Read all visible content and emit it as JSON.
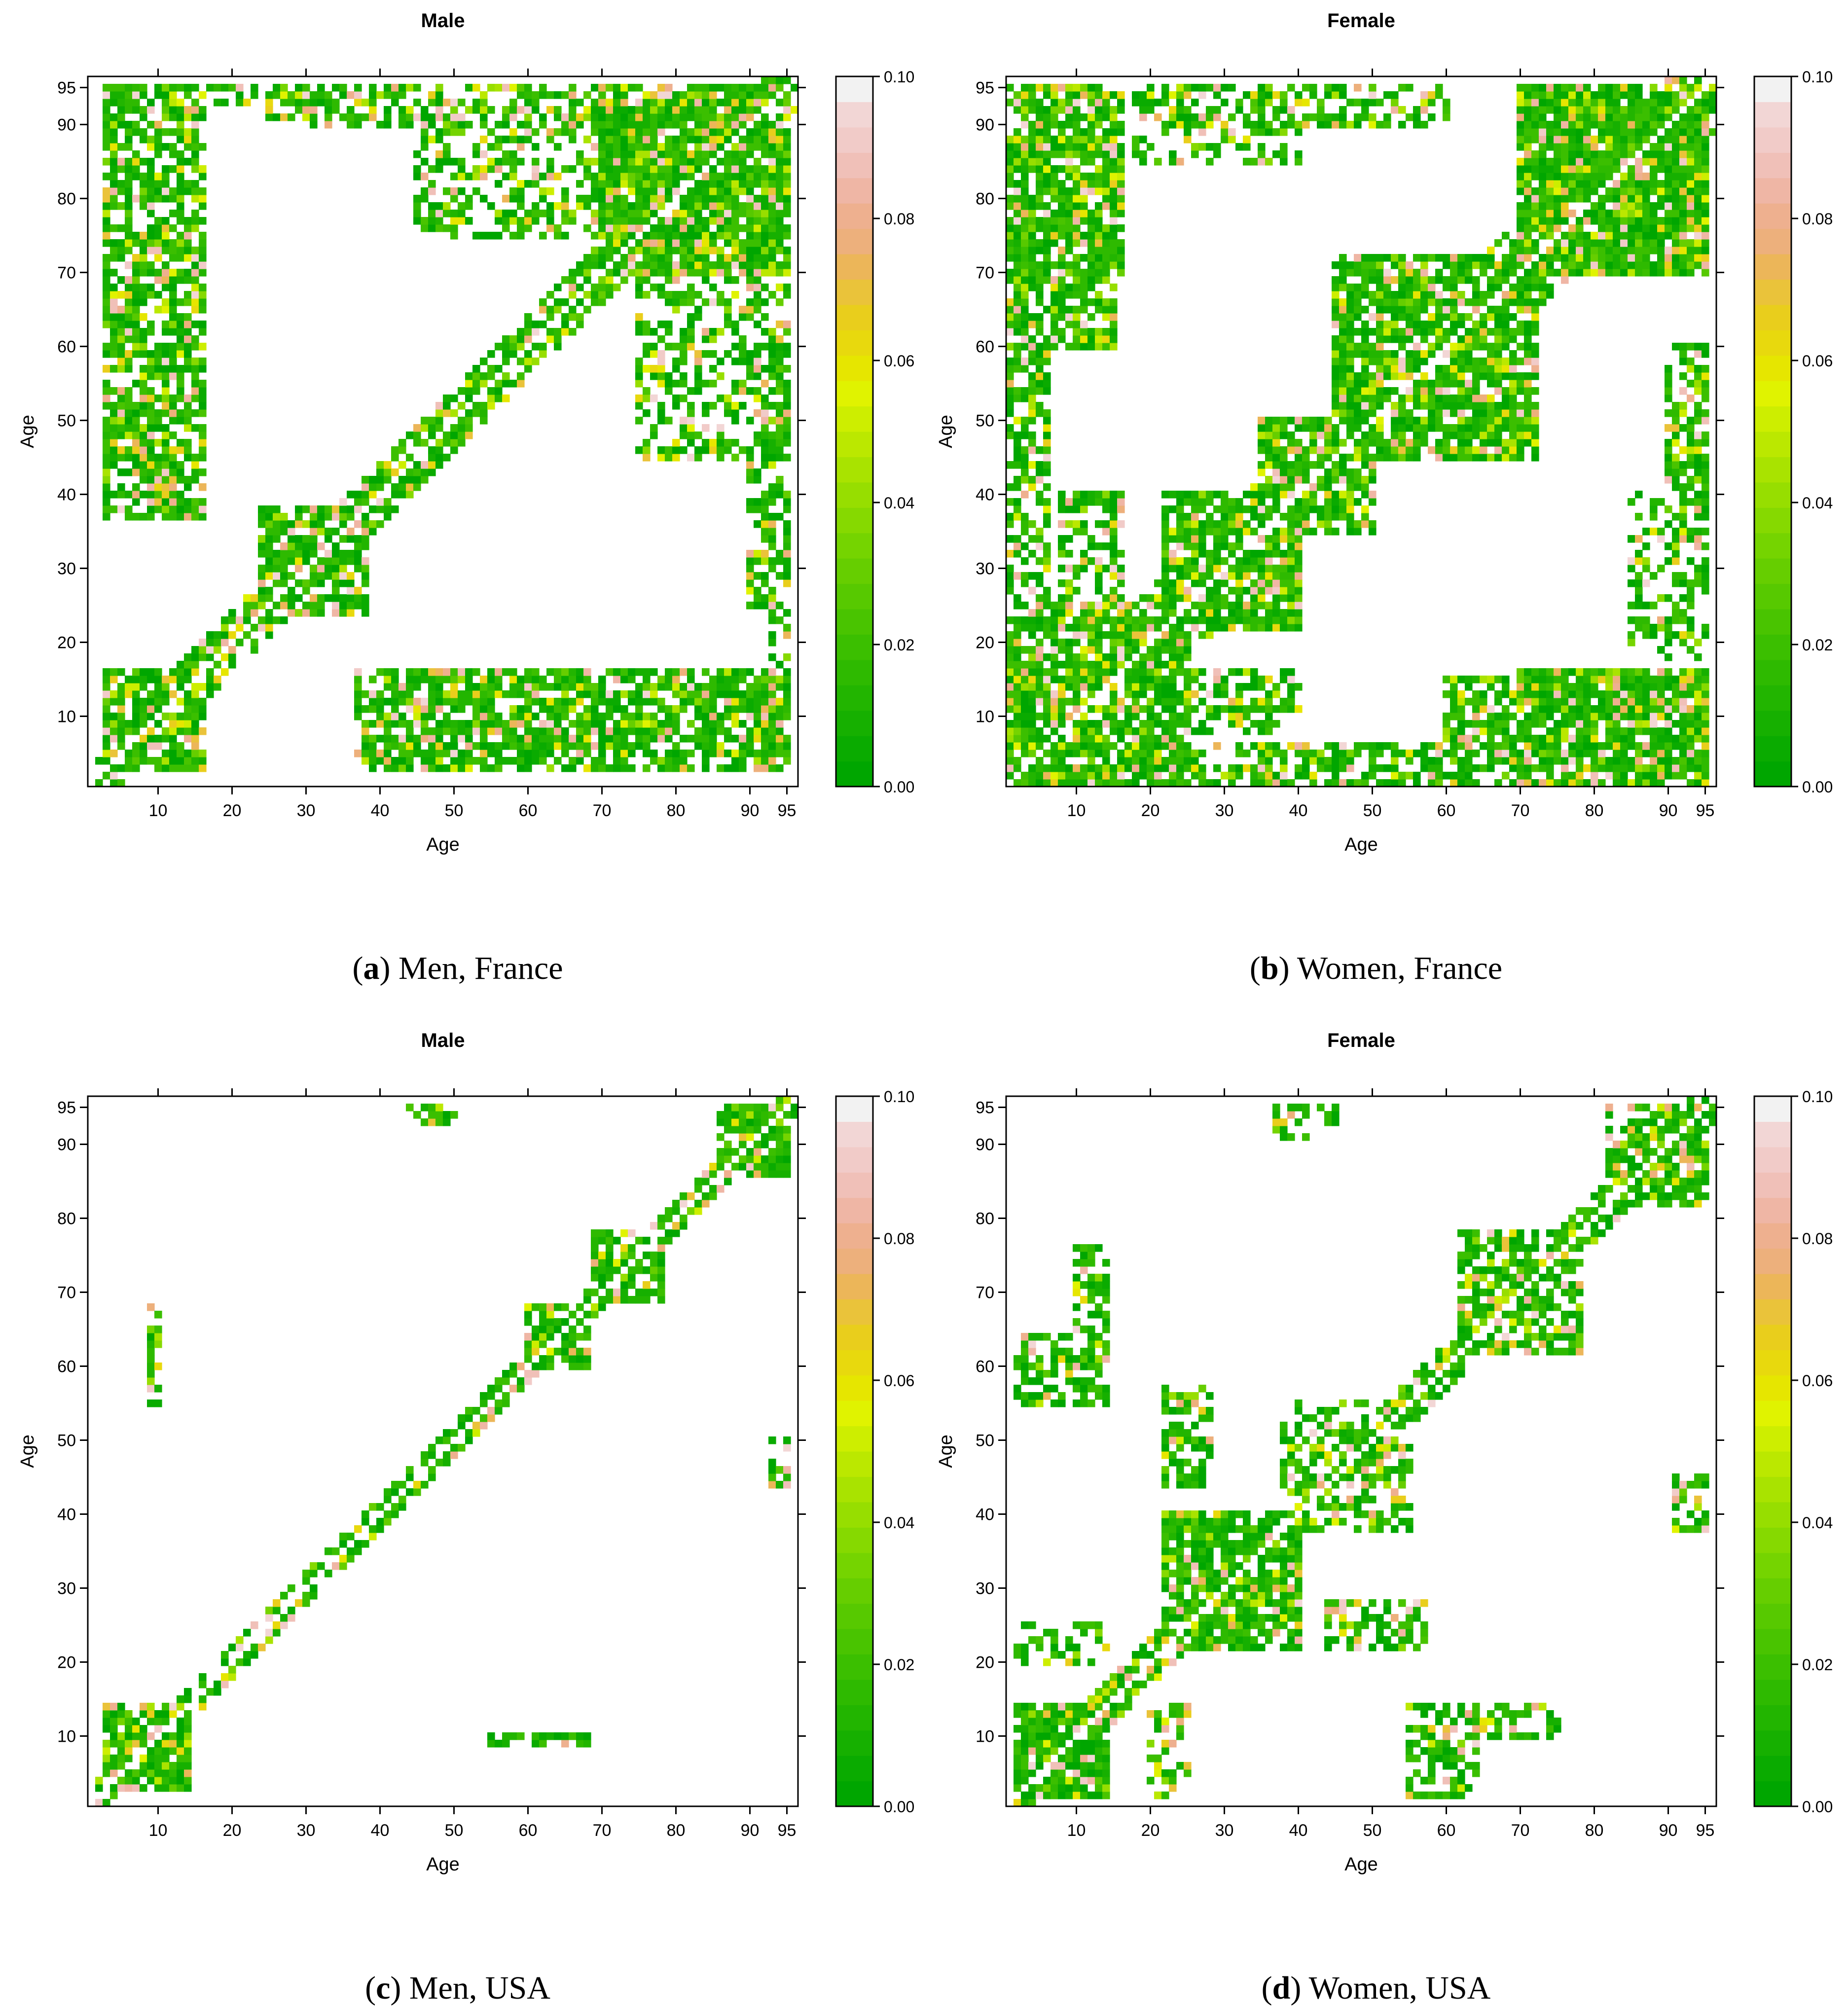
{
  "figure": {
    "description_free": true,
    "colors": {
      "scale": [
        "#00a600",
        "#0aab00",
        "#16b000",
        "#22b500",
        "#2eba00",
        "#3bbf00",
        "#49c400",
        "#57c900",
        "#66ce00",
        "#75d400",
        "#86d900",
        "#97de00",
        "#a9e300",
        "#bbe800",
        "#cdee00",
        "#e0f300",
        "#e6e600",
        "#e8d90d",
        "#e9ce1c",
        "#eac33a",
        "#ecb659",
        "#edb07c",
        "#eeb08f",
        "#efb6a5",
        "#f0c0b8",
        "#f1cbc8",
        "#f2d6d5",
        "#f2f2f2"
      ],
      "frame": "#000000",
      "background": "#ffffff"
    }
  },
  "chart_data": [
    {
      "type": "heatmap",
      "title": "Male",
      "caption_letter": "a",
      "caption_text": ") Men, France",
      "caption_open": "(",
      "xlabel": "Age",
      "ylabel": "Age",
      "x_ticks": [
        10,
        20,
        30,
        40,
        50,
        60,
        70,
        80,
        90,
        95
      ],
      "y_ticks": [
        10,
        20,
        30,
        40,
        50,
        60,
        70,
        80,
        90,
        95
      ],
      "xlim": [
        0.5,
        96.5
      ],
      "ylim": [
        0.5,
        96.5
      ],
      "colorbar_ticks": [
        "0.00",
        "0.02",
        "0.04",
        "0.06",
        "0.08",
        "0.10"
      ],
      "colorbar_range": [
        0,
        0.1
      ],
      "diagonal_white": true,
      "regions": [
        {
          "x": [
            3,
            16
          ],
          "y": [
            37,
            95
          ],
          "density": 0.75
        },
        {
          "x": [
            3,
            95
          ],
          "y": [
            93,
            95
          ],
          "density": 0.55
        },
        {
          "x": [
            50,
            75
          ],
          "y": [
            75,
            90
          ],
          "density": 0.45
        },
        {
          "x": [
            70,
            95
          ],
          "y": [
            70,
            95
          ],
          "density": 0.92
        },
        {
          "x": [
            75,
            95
          ],
          "y": [
            45,
            72
          ],
          "density": 0.5
        },
        {
          "x": [
            90,
            95
          ],
          "y": [
            25,
            60
          ],
          "density": 0.65
        },
        {
          "x": [
            24,
            38
          ],
          "y": [
            24,
            37
          ],
          "density": 0.85
        },
        {
          "x": [
            3,
            16
          ],
          "y": [
            3,
            16
          ],
          "density": 0.9
        },
        {
          "x": [
            40,
            95
          ],
          "y": [
            3,
            16
          ],
          "density": 0.8
        }
      ],
      "band_width": 4
    },
    {
      "type": "heatmap",
      "title": "Female",
      "caption_letter": "b",
      "caption_text": ") Women, France",
      "caption_open": "(",
      "xlabel": "Age",
      "ylabel": "Age",
      "x_ticks": [
        10,
        20,
        30,
        40,
        50,
        60,
        70,
        80,
        90,
        95
      ],
      "y_ticks": [
        10,
        20,
        30,
        40,
        50,
        60,
        70,
        80,
        90,
        95
      ],
      "xlim": [
        0.5,
        96.5
      ],
      "ylim": [
        0.5,
        96.5
      ],
      "colorbar_ticks": [
        "0.00",
        "0.02",
        "0.04",
        "0.06",
        "0.08",
        "0.10"
      ],
      "colorbar_range": [
        0,
        0.1
      ],
      "diagonal_white": true,
      "regions": [
        {
          "x": [
            1,
            15
          ],
          "y": [
            60,
            95
          ],
          "density": 0.75
        },
        {
          "x": [
            18,
            40
          ],
          "y": [
            85,
            95
          ],
          "density": 0.4
        },
        {
          "x": [
            70,
            95
          ],
          "y": [
            70,
            95
          ],
          "density": 0.95
        },
        {
          "x": [
            45,
            72
          ],
          "y": [
            45,
            70
          ],
          "density": 0.85
        },
        {
          "x": [
            35,
            50
          ],
          "y": [
            35,
            50
          ],
          "density": 0.8
        },
        {
          "x": [
            22,
            40
          ],
          "y": [
            22,
            40
          ],
          "density": 0.85
        },
        {
          "x": [
            1,
            25
          ],
          "y": [
            1,
            25
          ],
          "density": 0.85
        },
        {
          "x": [
            1,
            6
          ],
          "y": [
            25,
            60
          ],
          "density": 0.5
        },
        {
          "x": [
            90,
            95
          ],
          "y": [
            20,
            60
          ],
          "density": 0.65
        },
        {
          "x": [
            70,
            95
          ],
          "y": [
            3,
            16
          ],
          "density": 0.9
        },
        {
          "x": [
            35,
            95
          ],
          "y": [
            1,
            6
          ],
          "density": 0.7
        },
        {
          "x": [
            25,
            40
          ],
          "y": [
            8,
            16
          ],
          "density": 0.5
        }
      ],
      "band_width": 7
    },
    {
      "type": "heatmap",
      "title": "Male",
      "caption_letter": "c",
      "caption_text": ") Men, USA",
      "caption_open": "(",
      "xlabel": "Age",
      "ylabel": "Age",
      "x_ticks": [
        10,
        20,
        30,
        40,
        50,
        60,
        70,
        80,
        90,
        95
      ],
      "y_ticks": [
        10,
        20,
        30,
        40,
        50,
        60,
        70,
        80,
        90,
        95
      ],
      "xlim": [
        0.5,
        96.5
      ],
      "ylim": [
        0.5,
        96.5
      ],
      "colorbar_ticks": [
        "0.00",
        "0.02",
        "0.04",
        "0.06",
        "0.08",
        "0.10"
      ],
      "colorbar_range": [
        0,
        0.1
      ],
      "diagonal_white": true,
      "regions": [
        {
          "x": [
            3,
            14
          ],
          "y": [
            3,
            14
          ],
          "density": 0.85
        },
        {
          "x": [
            60,
            68
          ],
          "y": [
            60,
            68
          ],
          "density": 0.8
        },
        {
          "x": [
            69,
            78
          ],
          "y": [
            69,
            78
          ],
          "density": 0.75
        },
        {
          "x": [
            86,
            95
          ],
          "y": [
            86,
            95
          ],
          "density": 0.8
        },
        {
          "x": [
            9,
            10
          ],
          "y": [
            55,
            67
          ],
          "density": 0.6
        },
        {
          "x": [
            44,
            50
          ],
          "y": [
            93,
            95
          ],
          "density": 0.5
        },
        {
          "x": [
            55,
            68
          ],
          "y": [
            9,
            10
          ],
          "density": 0.6
        }
      ],
      "band_width": 2
    },
    {
      "type": "heatmap",
      "title": "Female",
      "caption_letter": "d",
      "caption_text": ") Women, USA",
      "caption_open": "(",
      "xlabel": "Age",
      "ylabel": "Age",
      "x_ticks": [
        10,
        20,
        30,
        40,
        50,
        60,
        70,
        80,
        90,
        95
      ],
      "y_ticks": [
        10,
        20,
        30,
        40,
        50,
        60,
        70,
        80,
        90,
        95
      ],
      "xlim": [
        0.5,
        96.5
      ],
      "ylim": [
        0.5,
        96.5
      ],
      "colorbar_ticks": [
        "0.00",
        "0.02",
        "0.04",
        "0.06",
        "0.08",
        "0.10"
      ],
      "colorbar_range": [
        0,
        0.1
      ],
      "diagonal_white": true,
      "regions": [
        {
          "x": [
            2,
            14
          ],
          "y": [
            2,
            14
          ],
          "density": 0.92
        },
        {
          "x": [
            22,
            40
          ],
          "y": [
            22,
            40
          ],
          "density": 0.85
        },
        {
          "x": [
            40,
            55
          ],
          "y": [
            38,
            50
          ],
          "density": 0.6
        },
        {
          "x": [
            62,
            78
          ],
          "y": [
            62,
            78
          ],
          "density": 0.7
        },
        {
          "x": [
            82,
            95
          ],
          "y": [
            82,
            95
          ],
          "density": 0.75
        },
        {
          "x": [
            2,
            14
          ],
          "y": [
            55,
            62
          ],
          "density": 0.65
        },
        {
          "x": [
            10,
            14
          ],
          "y": [
            68,
            75
          ],
          "density": 0.55
        },
        {
          "x": [
            23,
            28
          ],
          "y": [
            45,
            56
          ],
          "density": 0.6
        },
        {
          "x": [
            44,
            57
          ],
          "y": [
            22,
            28
          ],
          "density": 0.65
        },
        {
          "x": [
            56,
            64
          ],
          "y": [
            3,
            14
          ],
          "density": 0.6
        },
        {
          "x": [
            64,
            76
          ],
          "y": [
            10,
            14
          ],
          "density": 0.5
        },
        {
          "x": [
            91,
            95
          ],
          "y": [
            40,
            45
          ],
          "density": 0.5
        },
        {
          "x": [
            37,
            41
          ],
          "y": [
            91,
            95
          ],
          "density": 0.5
        },
        {
          "x": [
            2,
            14
          ],
          "y": [
            20,
            25
          ],
          "density": 0.35
        }
      ],
      "band_width": 3
    }
  ]
}
